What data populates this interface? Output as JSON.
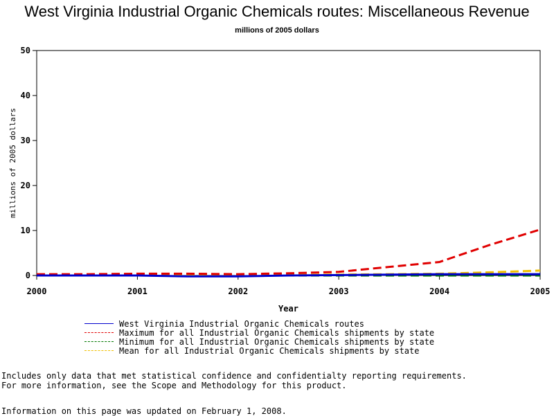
{
  "chart_data": {
    "type": "line",
    "title": "West Virginia Industrial Organic Chemicals routes: Miscellaneous Revenue",
    "subtitle": "millions of 2005 dollars",
    "xlabel": "Year",
    "ylabel": "millions of 2005 dollars",
    "xlim": [
      2000,
      2005
    ],
    "ylim": [
      0,
      50
    ],
    "x_ticks": [
      "2000",
      "2001",
      "2002",
      "2003",
      "2004",
      "2005"
    ],
    "y_ticks": [
      "0",
      "10",
      "20",
      "30",
      "40",
      "50"
    ],
    "grid": false,
    "legend_position": "bottom",
    "x": [
      2000,
      2000.5,
      2001,
      2001.5,
      2002,
      2002.5,
      2003,
      2003.5,
      2004,
      2004.5,
      2005
    ],
    "series": [
      {
        "name": "West Virginia Industrial Organic Chemicals routes",
        "color": "#0000cc",
        "dash": "solid",
        "values": [
          0.0,
          0.0,
          0.0,
          -0.2,
          -0.2,
          0.0,
          0.1,
          0.2,
          0.3,
          0.3,
          0.3
        ]
      },
      {
        "name": "Maximum for all Industrial Organic Chemicals shipments by state",
        "color": "#e00000",
        "dash": "dashed",
        "values": [
          0.3,
          0.3,
          0.4,
          0.4,
          0.3,
          0.5,
          0.8,
          1.9,
          3.0,
          6.8,
          10.2
        ]
      },
      {
        "name": "Minimum for all Industrial Organic Chemicals shipments by state",
        "color": "#007700",
        "dash": "dashed",
        "values": [
          0.0,
          0.0,
          0.0,
          0.0,
          0.0,
          0.0,
          0.0,
          0.0,
          0.0,
          0.0,
          0.0
        ]
      },
      {
        "name": "Mean for all Industrial Organic Chemicals shipments by state",
        "color": "#f0c000",
        "dash": "dashed",
        "values": [
          0.1,
          0.1,
          0.1,
          0.1,
          0.1,
          0.1,
          0.2,
          0.3,
          0.4,
          0.7,
          1.1
        ]
      }
    ]
  },
  "notes": {
    "line1": "Includes only data that met statistical confidence and confidentialty reporting requirements.",
    "line2": "For more information, see the Scope and Methodology for this product.",
    "updated": "Information on this page was updated on February 1, 2008."
  }
}
